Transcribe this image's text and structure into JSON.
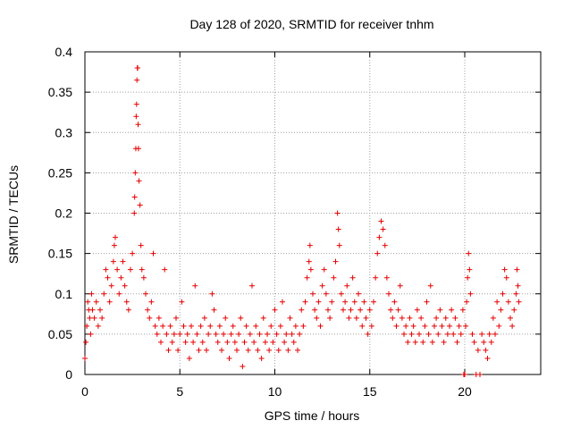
{
  "chart_data": {
    "type": "scatter",
    "title": "Day 128 of 2020, SRMTID for receiver tnhm",
    "xlabel": "GPS time / hours",
    "ylabel": "SRMTID / TECUs",
    "xlim": [
      0,
      24
    ],
    "ylim": [
      0,
      0.4
    ],
    "xticks": [
      0,
      5,
      10,
      15,
      20
    ],
    "yticks": [
      0,
      0.05,
      0.1,
      0.15,
      0.2,
      0.25,
      0.3,
      0.35,
      0.4
    ],
    "xtick_labels": [
      "0",
      "5",
      "10",
      "15",
      "20"
    ],
    "ytick_labels": [
      "0",
      "0.05",
      "0.1",
      "0.15",
      "0.2",
      "0.25",
      "0.3",
      "0.35",
      "0.4"
    ],
    "grid": true,
    "marker": "+",
    "series": [
      {
        "name": "SRMTID",
        "color": "#e60000",
        "points": [
          [
            0.0,
            0.02
          ],
          [
            0.05,
            0.04
          ],
          [
            0.1,
            0.06
          ],
          [
            0.15,
            0.09
          ],
          [
            0.2,
            0.08
          ],
          [
            0.25,
            0.07
          ],
          [
            0.3,
            0.05
          ],
          [
            0.35,
            0.1
          ],
          [
            0.4,
            0.08
          ],
          [
            0.5,
            0.07
          ],
          [
            0.6,
            0.09
          ],
          [
            0.7,
            0.06
          ],
          [
            0.8,
            0.08
          ],
          [
            0.9,
            0.07
          ],
          [
            1.0,
            0.1
          ],
          [
            1.1,
            0.13
          ],
          [
            1.2,
            0.12
          ],
          [
            1.3,
            0.09
          ],
          [
            1.4,
            0.11
          ],
          [
            1.5,
            0.14
          ],
          [
            1.55,
            0.16
          ],
          [
            1.6,
            0.17
          ],
          [
            1.7,
            0.13
          ],
          [
            1.8,
            0.1
          ],
          [
            1.9,
            0.12
          ],
          [
            2.0,
            0.14
          ],
          [
            2.1,
            0.11
          ],
          [
            2.2,
            0.09
          ],
          [
            2.3,
            0.08
          ],
          [
            2.4,
            0.13
          ],
          [
            2.5,
            0.15
          ],
          [
            2.6,
            0.2
          ],
          [
            2.62,
            0.22
          ],
          [
            2.65,
            0.25
          ],
          [
            2.68,
            0.28
          ],
          [
            2.7,
            0.32
          ],
          [
            2.72,
            0.335
          ],
          [
            2.74,
            0.365
          ],
          [
            2.76,
            0.38
          ],
          [
            2.78,
            0.38
          ],
          [
            2.8,
            0.31
          ],
          [
            2.82,
            0.28
          ],
          [
            2.85,
            0.24
          ],
          [
            2.9,
            0.21
          ],
          [
            2.95,
            0.16
          ],
          [
            3.0,
            0.13
          ],
          [
            3.1,
            0.12
          ],
          [
            3.2,
            0.1
          ],
          [
            3.3,
            0.08
          ],
          [
            3.4,
            0.07
          ],
          [
            3.5,
            0.09
          ],
          [
            3.6,
            0.15
          ],
          [
            3.7,
            0.06
          ],
          [
            3.8,
            0.05
          ],
          [
            3.9,
            0.07
          ],
          [
            4.0,
            0.04
          ],
          [
            4.1,
            0.06
          ],
          [
            4.2,
            0.13
          ],
          [
            4.3,
            0.05
          ],
          [
            4.4,
            0.03
          ],
          [
            4.5,
            0.06
          ],
          [
            4.6,
            0.04
          ],
          [
            4.7,
            0.05
          ],
          [
            4.8,
            0.07
          ],
          [
            4.9,
            0.03
          ],
          [
            5.0,
            0.05
          ],
          [
            5.1,
            0.09
          ],
          [
            5.2,
            0.06
          ],
          [
            5.3,
            0.04
          ],
          [
            5.4,
            0.05
          ],
          [
            5.5,
            0.02
          ],
          [
            5.6,
            0.06
          ],
          [
            5.7,
            0.04
          ],
          [
            5.8,
            0.11
          ],
          [
            5.9,
            0.05
          ],
          [
            6.0,
            0.03
          ],
          [
            6.1,
            0.06
          ],
          [
            6.2,
            0.04
          ],
          [
            6.3,
            0.07
          ],
          [
            6.4,
            0.03
          ],
          [
            6.5,
            0.05
          ],
          [
            6.6,
            0.06
          ],
          [
            6.7,
            0.1
          ],
          [
            6.8,
            0.08
          ],
          [
            6.9,
            0.05
          ],
          [
            7.0,
            0.04
          ],
          [
            7.1,
            0.06
          ],
          [
            7.2,
            0.03
          ],
          [
            7.3,
            0.05
          ],
          [
            7.4,
            0.07
          ],
          [
            7.5,
            0.04
          ],
          [
            7.6,
            0.02
          ],
          [
            7.7,
            0.05
          ],
          [
            7.8,
            0.06
          ],
          [
            7.9,
            0.04
          ],
          [
            8.0,
            0.03
          ],
          [
            8.1,
            0.05
          ],
          [
            8.2,
            0.07
          ],
          [
            8.3,
            0.01
          ],
          [
            8.4,
            0.04
          ],
          [
            8.5,
            0.06
          ],
          [
            8.6,
            0.03
          ],
          [
            8.7,
            0.05
          ],
          [
            8.8,
            0.11
          ],
          [
            8.9,
            0.04
          ],
          [
            9.0,
            0.06
          ],
          [
            9.1,
            0.03
          ],
          [
            9.2,
            0.05
          ],
          [
            9.3,
            0.02
          ],
          [
            9.4,
            0.07
          ],
          [
            9.5,
            0.04
          ],
          [
            9.6,
            0.05
          ],
          [
            9.7,
            0.03
          ],
          [
            9.8,
            0.06
          ],
          [
            9.9,
            0.04
          ],
          [
            10.0,
            0.08
          ],
          [
            10.1,
            0.05
          ],
          [
            10.2,
            0.03
          ],
          [
            10.3,
            0.06
          ],
          [
            10.4,
            0.09
          ],
          [
            10.5,
            0.04
          ],
          [
            10.6,
            0.05
          ],
          [
            10.7,
            0.03
          ],
          [
            10.8,
            0.07
          ],
          [
            10.9,
            0.05
          ],
          [
            11.0,
            0.04
          ],
          [
            11.1,
            0.06
          ],
          [
            11.2,
            0.03
          ],
          [
            11.3,
            0.05
          ],
          [
            11.4,
            0.08
          ],
          [
            11.5,
            0.06
          ],
          [
            11.6,
            0.09
          ],
          [
            11.7,
            0.12
          ],
          [
            11.8,
            0.14
          ],
          [
            11.85,
            0.16
          ],
          [
            11.9,
            0.13
          ],
          [
            12.0,
            0.1
          ],
          [
            12.1,
            0.08
          ],
          [
            12.2,
            0.07
          ],
          [
            12.3,
            0.09
          ],
          [
            12.4,
            0.06
          ],
          [
            12.5,
            0.11
          ],
          [
            12.6,
            0.13
          ],
          [
            12.7,
            0.1
          ],
          [
            12.8,
            0.08
          ],
          [
            12.9,
            0.07
          ],
          [
            13.0,
            0.09
          ],
          [
            13.1,
            0.12
          ],
          [
            13.2,
            0.14
          ],
          [
            13.3,
            0.2
          ],
          [
            13.35,
            0.18
          ],
          [
            13.4,
            0.16
          ],
          [
            13.5,
            0.1
          ],
          [
            13.6,
            0.08
          ],
          [
            13.7,
            0.09
          ],
          [
            13.8,
            0.11
          ],
          [
            13.9,
            0.07
          ],
          [
            14.0,
            0.08
          ],
          [
            14.1,
            0.12
          ],
          [
            14.2,
            0.09
          ],
          [
            14.3,
            0.07
          ],
          [
            14.4,
            0.1
          ],
          [
            14.5,
            0.08
          ],
          [
            14.6,
            0.06
          ],
          [
            14.7,
            0.09
          ],
          [
            14.8,
            0.07
          ],
          [
            14.9,
            0.05
          ],
          [
            15.0,
            0.08
          ],
          [
            15.1,
            0.06
          ],
          [
            15.2,
            0.09
          ],
          [
            15.3,
            0.12
          ],
          [
            15.4,
            0.15
          ],
          [
            15.5,
            0.17
          ],
          [
            15.6,
            0.19
          ],
          [
            15.7,
            0.18
          ],
          [
            15.8,
            0.16
          ],
          [
            15.9,
            0.12
          ],
          [
            16.0,
            0.1
          ],
          [
            16.1,
            0.08
          ],
          [
            16.2,
            0.07
          ],
          [
            16.3,
            0.09
          ],
          [
            16.4,
            0.06
          ],
          [
            16.5,
            0.08
          ],
          [
            16.6,
            0.11
          ],
          [
            16.7,
            0.07
          ],
          [
            16.8,
            0.05
          ],
          [
            16.9,
            0.06
          ],
          [
            17.0,
            0.04
          ],
          [
            17.1,
            0.07
          ],
          [
            17.2,
            0.05
          ],
          [
            17.3,
            0.06
          ],
          [
            17.4,
            0.04
          ],
          [
            17.5,
            0.08
          ],
          [
            17.6,
            0.05
          ],
          [
            17.7,
            0.07
          ],
          [
            17.8,
            0.04
          ],
          [
            17.9,
            0.06
          ],
          [
            18.0,
            0.09
          ],
          [
            18.1,
            0.05
          ],
          [
            18.2,
            0.11
          ],
          [
            18.3,
            0.04
          ],
          [
            18.4,
            0.06
          ],
          [
            18.5,
            0.07
          ],
          [
            18.6,
            0.05
          ],
          [
            18.7,
            0.08
          ],
          [
            18.8,
            0.06
          ],
          [
            18.9,
            0.04
          ],
          [
            19.0,
            0.07
          ],
          [
            19.1,
            0.05
          ],
          [
            19.2,
            0.06
          ],
          [
            19.3,
            0.08
          ],
          [
            19.4,
            0.05
          ],
          [
            19.5,
            0.07
          ],
          [
            19.6,
            0.04
          ],
          [
            19.7,
            0.06
          ],
          [
            19.8,
            0.05
          ],
          [
            19.9,
            0.08
          ],
          [
            19.95,
            0.0
          ],
          [
            20.0,
            0.0
          ],
          [
            20.05,
            0.06
          ],
          [
            20.1,
            0.09
          ],
          [
            20.15,
            0.12
          ],
          [
            20.2,
            0.15
          ],
          [
            20.25,
            0.13
          ],
          [
            20.3,
            0.1
          ],
          [
            20.4,
            0.05
          ],
          [
            20.5,
            0.04
          ],
          [
            20.6,
            0.0
          ],
          [
            20.7,
            0.03
          ],
          [
            20.8,
            0.0
          ],
          [
            20.9,
            0.05
          ],
          [
            21.0,
            0.04
          ],
          [
            21.1,
            0.03
          ],
          [
            21.2,
            0.02
          ],
          [
            21.3,
            0.05
          ],
          [
            21.4,
            0.04
          ],
          [
            21.5,
            0.07
          ],
          [
            21.6,
            0.05
          ],
          [
            21.7,
            0.09
          ],
          [
            21.8,
            0.06
          ],
          [
            21.9,
            0.08
          ],
          [
            22.0,
            0.1
          ],
          [
            22.1,
            0.13
          ],
          [
            22.2,
            0.12
          ],
          [
            22.3,
            0.09
          ],
          [
            22.4,
            0.07
          ],
          [
            22.5,
            0.06
          ],
          [
            22.6,
            0.08
          ],
          [
            22.7,
            0.1
          ],
          [
            22.75,
            0.13
          ],
          [
            22.8,
            0.11
          ],
          [
            22.85,
            0.09
          ]
        ]
      }
    ]
  }
}
